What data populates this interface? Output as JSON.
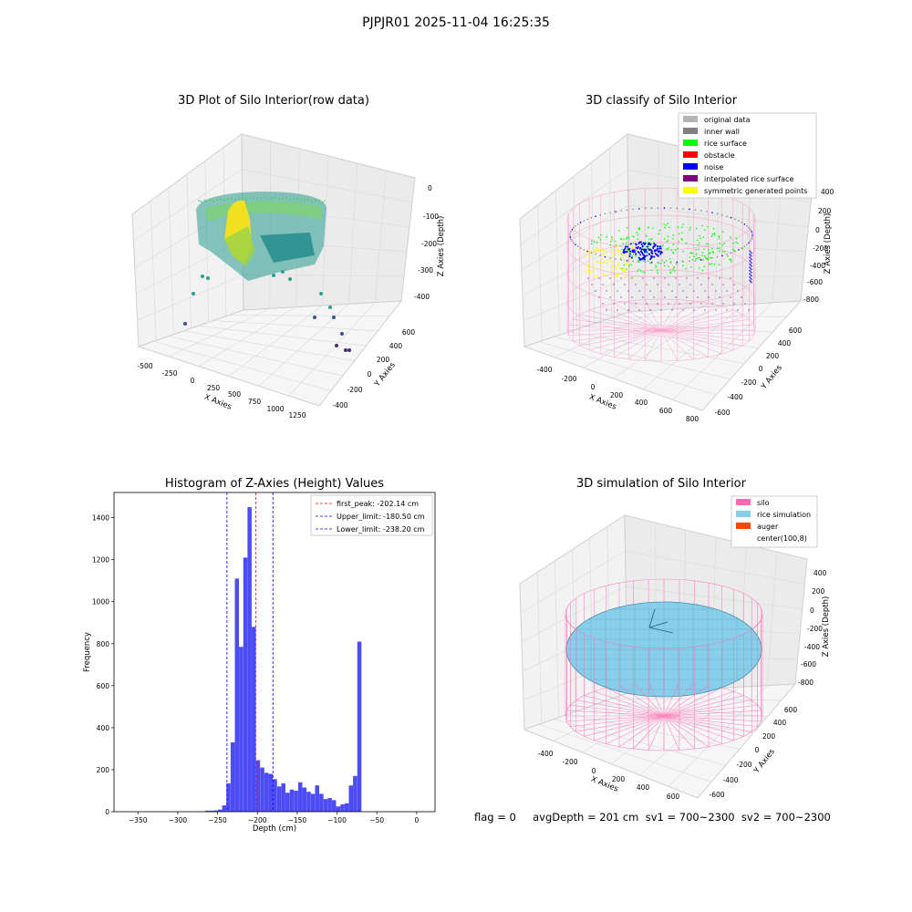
{
  "suptitle": "PJPJR01 2025-11-04 16:25:35",
  "footer": "flag = 0     avgDepth = 201 cm  sv1 = 700~2300  sv2 = 700~2300",
  "chart_data": [
    {
      "type": "scatter3d",
      "title": "3D Plot of Silo Interior(row data)",
      "xlabel": "X Axies",
      "ylabel": "Y Axies",
      "zlabel": "Z Axies (Depth)",
      "x_ticks": [
        "-500",
        "-250",
        "0",
        "250",
        "500",
        "750",
        "1000",
        "1250"
      ],
      "y_ticks": [
        "-400",
        "-200",
        "0",
        "200",
        "400",
        "600"
      ],
      "z_ticks": [
        "0",
        "-100",
        "-200",
        "-300",
        "-400"
      ],
      "colormap": "viridis"
    },
    {
      "type": "scatter3d",
      "title": "3D classify of Silo Interior",
      "xlabel": "X Axies",
      "ylabel": "Y Axies",
      "zlabel": "Z Axies (Depth)",
      "x_ticks": [
        "-400",
        "-200",
        "0",
        "200",
        "400",
        "600",
        "800"
      ],
      "y_ticks": [
        "-600",
        "-400",
        "-200",
        "0",
        "200",
        "400",
        "600"
      ],
      "z_ticks": [
        "200",
        "0",
        "-200",
        "-400",
        "-600",
        "-800"
      ],
      "legend_position": "top-right",
      "legend": [
        {
          "label": "original data",
          "color": "#b4b4b4"
        },
        {
          "label": "inner wall",
          "color": "#808080"
        },
        {
          "label": "rice surface",
          "color": "#00ff00"
        },
        {
          "label": "obstacle",
          "color": "#ff0000"
        },
        {
          "label": "noise",
          "color": "#0000ff"
        },
        {
          "label": "interpolated rice surface",
          "color": "#800080"
        },
        {
          "label": "symmetric generated points",
          "color": "#ffff00"
        }
      ],
      "z_extra_tick": "400"
    },
    {
      "type": "bar",
      "title": "Histogram of Z-Axies (Height) Values",
      "xlabel": "Depth (cm)",
      "ylabel": "Frequency",
      "xlim": [
        -380,
        23
      ],
      "ylim": [
        0,
        1520
      ],
      "x_ticks": [
        -350,
        -300,
        -250,
        -200,
        -150,
        -100,
        -50,
        0
      ],
      "y_ticks": [
        0,
        200,
        400,
        600,
        800,
        1000,
        1200,
        1400
      ],
      "bin_width": 5.3,
      "bin_left_edges": [
        -276,
        -270.7,
        -265.4,
        -260.1,
        -254.8,
        -249.5,
        -244.2,
        -238.9,
        -233.6,
        -228.3,
        -223.0,
        -217.7,
        -212.4,
        -207.1,
        -201.8,
        -196.5,
        -191.2,
        -185.9,
        -180.6,
        -175.3,
        -170.0,
        -164.7,
        -159.4,
        -154.1,
        -148.8,
        -143.5,
        -138.2,
        -132.9,
        -127.6,
        -122.3,
        -117.0,
        -111.7,
        -106.4,
        -101.1,
        -95.8,
        -90.5,
        -85.2,
        -79.9,
        -74.6,
        -69.3,
        -64.0,
        -58.7,
        -53.4,
        -48.1,
        -42.8,
        -37.5,
        -32.2,
        -26.9,
        -21.6,
        -16.3,
        -11.0,
        -5.7
      ],
      "values": [
        1,
        2,
        5,
        5,
        6,
        10,
        30,
        135,
        330,
        1110,
        785,
        1210,
        1450,
        880,
        245,
        210,
        185,
        180,
        155,
        120,
        135,
        90,
        105,
        100,
        140,
        115,
        95,
        85,
        125,
        85,
        60,
        65,
        55,
        25,
        35,
        40,
        125,
        170,
        810,
        0,
        0,
        0,
        0,
        0,
        0,
        0,
        0,
        0,
        0,
        0,
        0,
        0
      ],
      "bar_color": "#4c4cf5",
      "vlines": [
        {
          "label": "first_peak: -202.14 cm",
          "x": -202.14,
          "color": "#ff0000"
        },
        {
          "label": "Upper_limit: -180.50 cm",
          "x": -180.5,
          "color": "#0000ff"
        },
        {
          "label": "Lower_limit: -238.20 cm",
          "x": -238.2,
          "color": "#0000ff"
        }
      ],
      "legend_position": "top-right"
    },
    {
      "type": "surface3d",
      "title": "3D simulation of Silo Interior",
      "xlabel": "X Axies",
      "ylabel": "Y Axies",
      "zlabel": "Z Axies (Depth)",
      "x_ticks": [
        "-400",
        "-200",
        "0",
        "200",
        "400",
        "600"
      ],
      "y_ticks": [
        "-600",
        "-400",
        "-200",
        "0",
        "200",
        "400",
        "600"
      ],
      "z_ticks": [
        "400",
        "200",
        "0",
        "-200",
        "-400",
        "-600",
        "-800"
      ],
      "legend_position": "top-right",
      "legend": [
        {
          "label": "silo",
          "color": "#ff69b4"
        },
        {
          "label": "rice simulation",
          "color": "#87ceeb"
        },
        {
          "label": "auger",
          "color": "#ff4500"
        },
        {
          "label": "center(100,8)",
          "color": "#ffffff"
        }
      ]
    }
  ]
}
